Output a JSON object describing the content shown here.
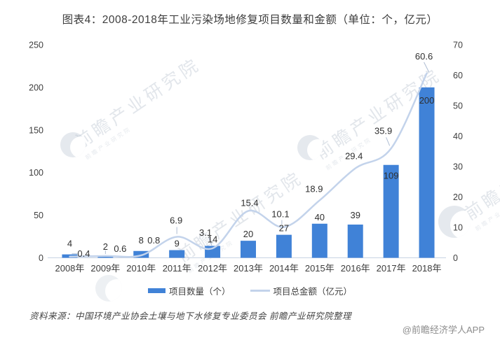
{
  "title": "图表4：2008-2018年工业污染场地修复项目数量和金额（单位：个，亿元）",
  "chart_data": {
    "type": "bar+line",
    "title": "图表4：2008-2018年工业污染场地修复项目数量和金额（单位：个，亿元）",
    "categories": [
      "2008年",
      "2009年",
      "2010年",
      "2011年",
      "2012年",
      "2013年",
      "2014年",
      "2015年",
      "2016年",
      "2017年",
      "2018年"
    ],
    "series": [
      {
        "name": "项目数量（个）",
        "type": "bar",
        "axis": "left",
        "values": [
          4,
          2,
          8,
          9,
          14,
          20,
          27,
          40,
          39,
          109,
          200
        ]
      },
      {
        "name": "项目总金额（亿元）",
        "type": "line",
        "axis": "right",
        "values": [
          0.4,
          0.6,
          0.8,
          6.9,
          3.1,
          15.4,
          10.1,
          18.9,
          29.4,
          35.9,
          60.6
        ]
      }
    ],
    "left_axis": {
      "ticks": [
        0,
        50,
        100,
        150,
        200,
        250
      ],
      "min": 0,
      "max": 250
    },
    "right_axis": {
      "ticks": [
        0,
        10,
        20,
        30,
        40,
        50,
        60,
        70
      ],
      "min": 0,
      "max": 70
    },
    "grid": false,
    "legend_position": "bottom",
    "data_labels": true
  },
  "legend": {
    "items": [
      {
        "label": "项目数量（个）",
        "swatch": "bar"
      },
      {
        "label": "项目总金额（亿元）",
        "swatch": "line"
      }
    ]
  },
  "watermark": {
    "text": "前瞻产业研究院"
  },
  "footer": {
    "source": "资料来源：中国环境产业协会土壤与地下水修复专业委员会  前瞻产业研究院整理",
    "credit": "@前瞻经济学人APP"
  },
  "colors": {
    "bar": "#4082D7",
    "line": "#C3D3EB",
    "axis_line": "#C7D3E3",
    "leader": "#AEBDD3",
    "text": "#3d3d3d",
    "label": "#2f2f2f",
    "muted": "#8c8c8c"
  }
}
